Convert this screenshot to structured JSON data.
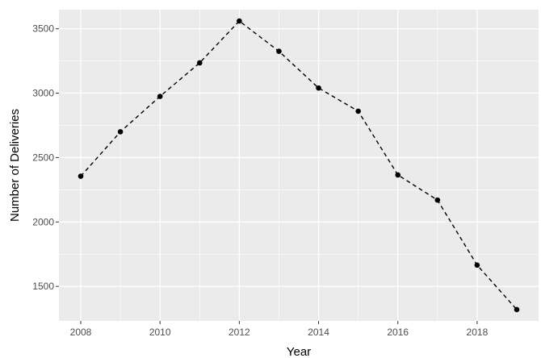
{
  "chart_data": {
    "type": "line",
    "title": "",
    "xlabel": "Year",
    "ylabel": "Number of Deliveries",
    "x": [
      2008,
      2009,
      2010,
      2011,
      2012,
      2013,
      2014,
      2015,
      2016,
      2017,
      2018,
      2019
    ],
    "series": [
      {
        "values": [
          2355,
          2700,
          2975,
          3235,
          3560,
          3325,
          3040,
          2860,
          2365,
          2170,
          1665,
          1320
        ]
      }
    ],
    "xlim": [
      2007.45,
      2019.55
    ],
    "ylim": [
      1232,
      3648
    ],
    "xticks": [
      2008,
      2010,
      2012,
      2014,
      2016,
      2018
    ],
    "yticks": [
      1500,
      2000,
      2500,
      3000,
      3500
    ],
    "xtick_labels": [
      "2008",
      "2010",
      "2012",
      "2014",
      "2016",
      "2018"
    ],
    "ytick_labels": [
      "1500",
      "2000",
      "2500",
      "3000",
      "3500"
    ],
    "line_style": "dashed",
    "marker": "point",
    "grid": true,
    "legend": "none",
    "colors": {
      "panel_background": "#ebebeb",
      "grid_major": "#ffffff",
      "line": "#000000",
      "tick_label": "#4d4d4d"
    }
  }
}
